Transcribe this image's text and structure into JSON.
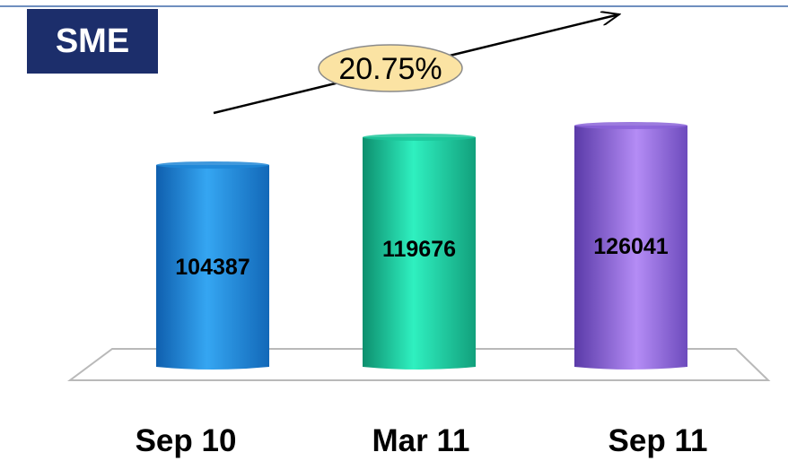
{
  "title": "SME",
  "growth_label": "20.75%",
  "colors": {
    "header": "#1c2e6b",
    "bubble": "#fbe3a3"
  },
  "chart_data": {
    "type": "bar",
    "categories": [
      "Sep 10",
      "Mar 11",
      "Sep 11"
    ],
    "values": [
      104387,
      119676,
      126041
    ],
    "data_labels": [
      "104387",
      "119676",
      "126041"
    ],
    "colors": [
      "#1e86d6",
      "#1cc69a",
      "#8a63d8"
    ],
    "title": "SME",
    "xlabel": "",
    "ylabel": "",
    "grid": false
  }
}
